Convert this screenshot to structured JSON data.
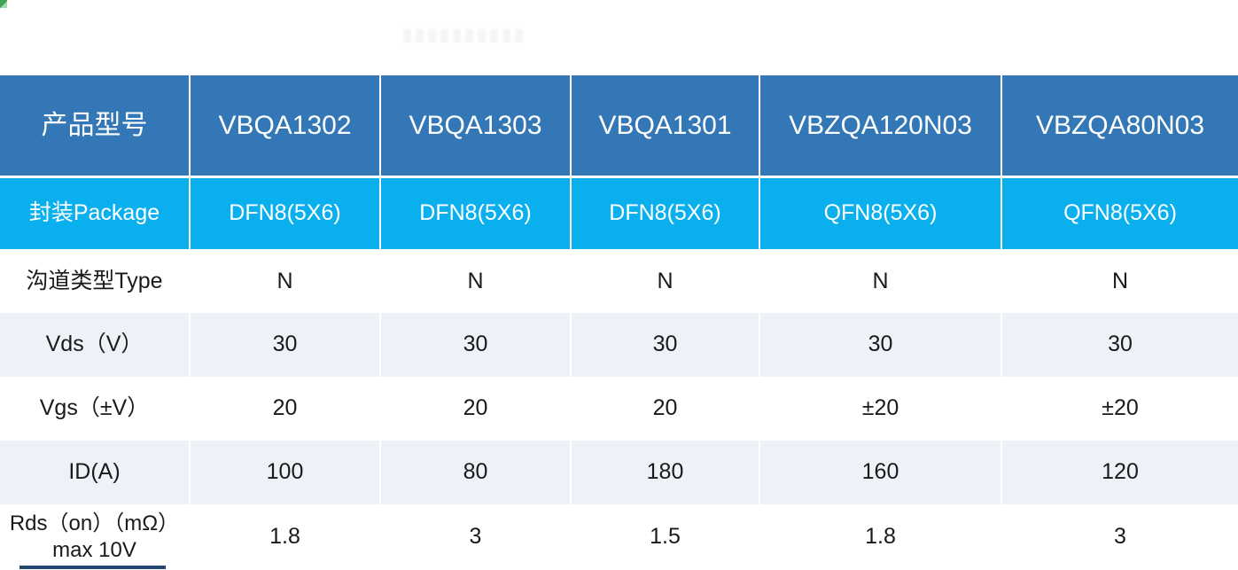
{
  "table": {
    "header": {
      "label": "产品型号",
      "models": [
        "VBQA1302",
        "VBQA1303",
        "VBQA1301",
        "VBZQA120N03",
        "VBZQA80N03"
      ]
    },
    "rows": [
      {
        "label": "封装Package",
        "values": [
          "DFN8(5X6)",
          "DFN8(5X6)",
          "DFN8(5X6)",
          "QFN8(5X6)",
          "QFN8(5X6)"
        ]
      },
      {
        "label": "沟道类型Type",
        "values": [
          "N",
          "N",
          "N",
          "N",
          "N"
        ]
      },
      {
        "label": "Vds（V）",
        "values": [
          "30",
          "30",
          "30",
          "30",
          "30"
        ]
      },
      {
        "label": "Vgs（±V）",
        "values": [
          "20",
          "20",
          "20",
          "±20",
          "±20"
        ]
      },
      {
        "label": "ID(A)",
        "values": [
          "100",
          "80",
          "180",
          "160",
          "120"
        ]
      },
      {
        "label": "Rds（on）（mΩ）max 10V",
        "values": [
          "1.8",
          "3",
          "1.5",
          "1.8",
          "3"
        ]
      }
    ],
    "colors": {
      "header_bg": "#3377b6",
      "package_bg": "#0ab0ee",
      "alt_row_bg": "#edf2f9",
      "header_text": "#ffffff",
      "body_text": "#1a1a1a"
    }
  }
}
